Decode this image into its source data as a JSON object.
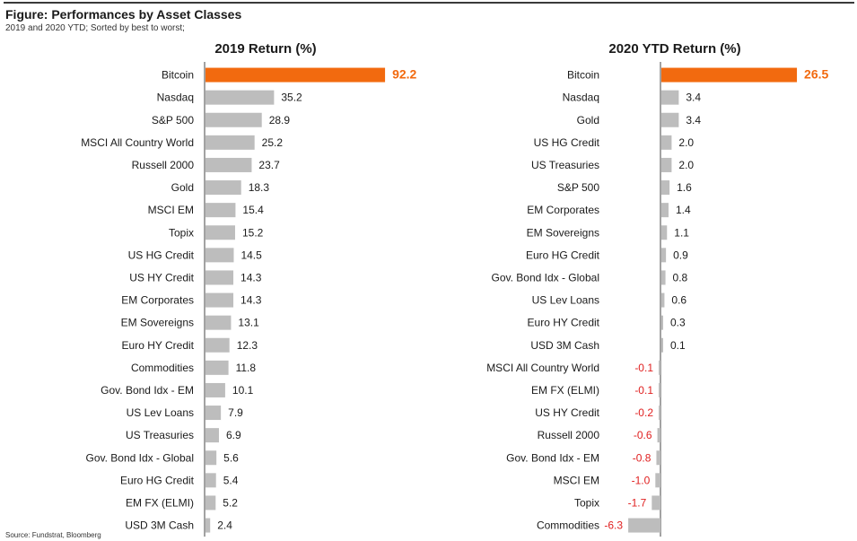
{
  "figure": {
    "title": "Figure: Performances by Asset Classes",
    "subtitle": "2019 and 2020 YTD; Sorted by best to worst;",
    "source": "Source: Fundstrat, Bloomberg"
  },
  "colors": {
    "highlight": "#f26a0f",
    "bar": "#bdbdbd",
    "negative_text": "#e02020",
    "axis": "#444444"
  },
  "chart_data": [
    {
      "type": "bar",
      "orientation": "horizontal",
      "title": "2019 Return (%)",
      "xlabel": "",
      "ylabel": "",
      "highlight": "Bitcoin",
      "categories": [
        "Bitcoin",
        "Nasdaq",
        "S&P 500",
        "MSCI All Country World",
        "Russell 2000",
        "Gold",
        "MSCI EM",
        "Topix",
        "US HG Credit",
        "US HY Credit",
        "EM Corporates",
        "EM Sovereigns",
        "Euro HY Credit",
        "Commodities",
        "Gov. Bond Idx - EM",
        "US Lev Loans",
        "US Treasuries",
        "Gov. Bond Idx - Global",
        "Euro HG Credit",
        "EM FX (ELMI)",
        "USD 3M Cash"
      ],
      "values": [
        92.2,
        35.2,
        28.9,
        25.2,
        23.7,
        18.3,
        15.4,
        15.2,
        14.5,
        14.3,
        14.3,
        13.1,
        12.3,
        11.8,
        10.1,
        7.9,
        6.9,
        5.6,
        5.4,
        5.2,
        2.4
      ],
      "grid": false
    },
    {
      "type": "bar",
      "orientation": "horizontal",
      "title": "2020 YTD Return (%)",
      "xlabel": "",
      "ylabel": "",
      "highlight": "Bitcoin",
      "categories": [
        "Bitcoin",
        "Nasdaq",
        "Gold",
        "US HG Credit",
        "US Treasuries",
        "S&P 500",
        "EM Corporates",
        "EM Sovereigns",
        "Euro HG Credit",
        "Gov. Bond Idx - Global",
        "US Lev Loans",
        "Euro HY Credit",
        "USD 3M Cash",
        "MSCI All Country World",
        "EM FX (ELMI)",
        "US HY Credit",
        "Russell 2000",
        "Gov. Bond Idx - EM",
        "MSCI EM",
        "Topix",
        "Commodities"
      ],
      "values": [
        26.5,
        3.4,
        3.4,
        2.0,
        2.0,
        1.6,
        1.4,
        1.1,
        0.9,
        0.8,
        0.6,
        0.3,
        0.1,
        -0.1,
        -0.1,
        -0.2,
        -0.6,
        -0.8,
        -1.0,
        -1.7,
        -6.3
      ],
      "grid": false
    }
  ]
}
